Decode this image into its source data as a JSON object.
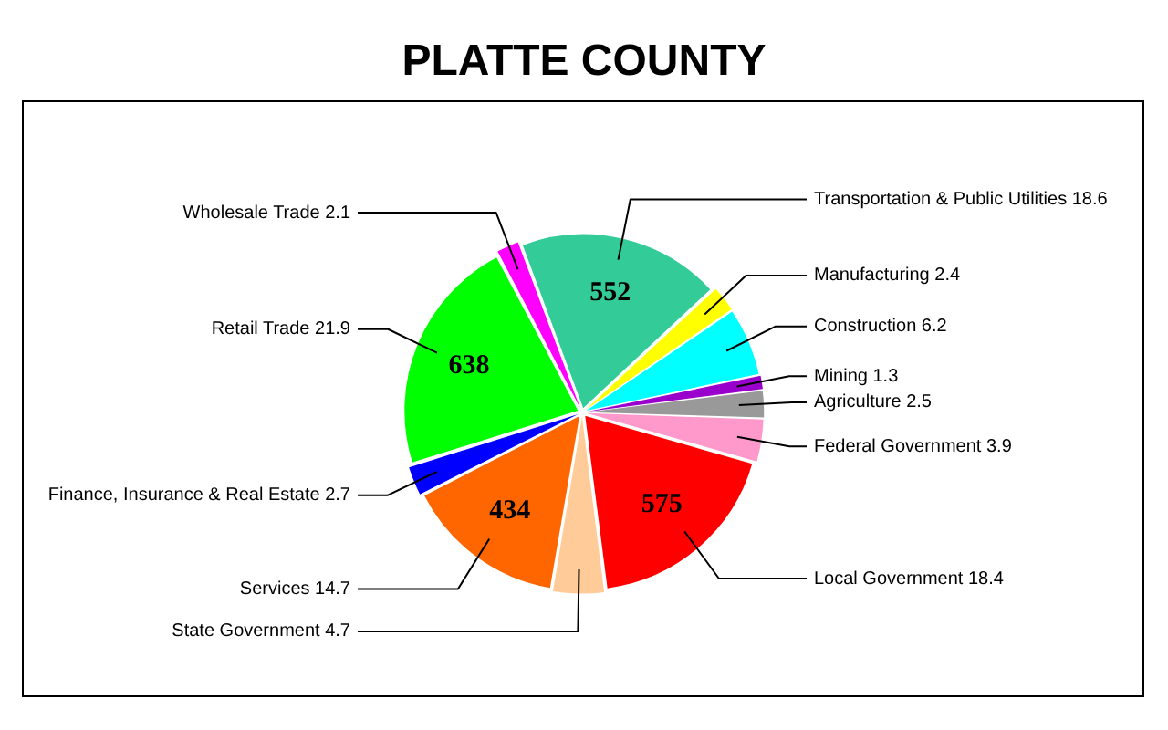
{
  "chart_data": {
    "type": "pie",
    "title": "PLATTE COUNTY",
    "categories": [
      "Wholesale Trade 2.1",
      "Transportation & Public Utilities 18.6",
      "Manufacturing 2.4",
      "Construction 6.2",
      "Mining 1.3",
      "Agriculture 2.5",
      "Federal Government 3.9",
      "Local Government 18.4",
      "State Government 4.7",
      "Services 14.7",
      "Finance, Insurance & Real Estate 2.7",
      "Retail Trade 21.9"
    ],
    "values": [
      2.1,
      18.6,
      2.4,
      6.2,
      1.3,
      2.5,
      3.9,
      18.4,
      4.7,
      14.7,
      2.7,
      21.9
    ],
    "colors": [
      "#ff00ff",
      "#33cc99",
      "#ffff00",
      "#00ffff",
      "#9900cc",
      "#999999",
      "#ff99cc",
      "#ff0000",
      "#ffcc99",
      "#ff6600",
      "#0000ff",
      "#00ff00"
    ],
    "legend": false,
    "annotations": [
      {
        "text": "552",
        "x": "Transportation & Public Utilities 18.6"
      },
      {
        "text": "638",
        "x": "Retail Trade 21.9"
      },
      {
        "text": "434",
        "x": "Services 14.7"
      },
      {
        "text": "575",
        "x": "Local Government 18.4"
      }
    ]
  }
}
